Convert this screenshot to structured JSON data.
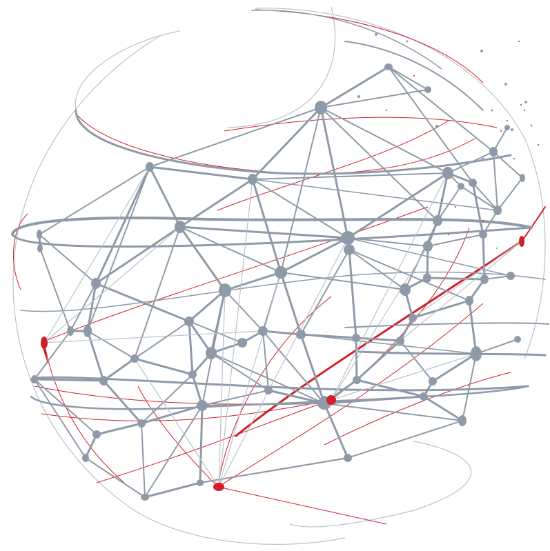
{
  "illustration": {
    "subject": "network-globe",
    "colors": {
      "background": "#ffffff",
      "network": "#8e9aa8",
      "network_light": "#b9c2cc",
      "accent": "#d11f2a"
    },
    "accent_node_count": 4
  }
}
